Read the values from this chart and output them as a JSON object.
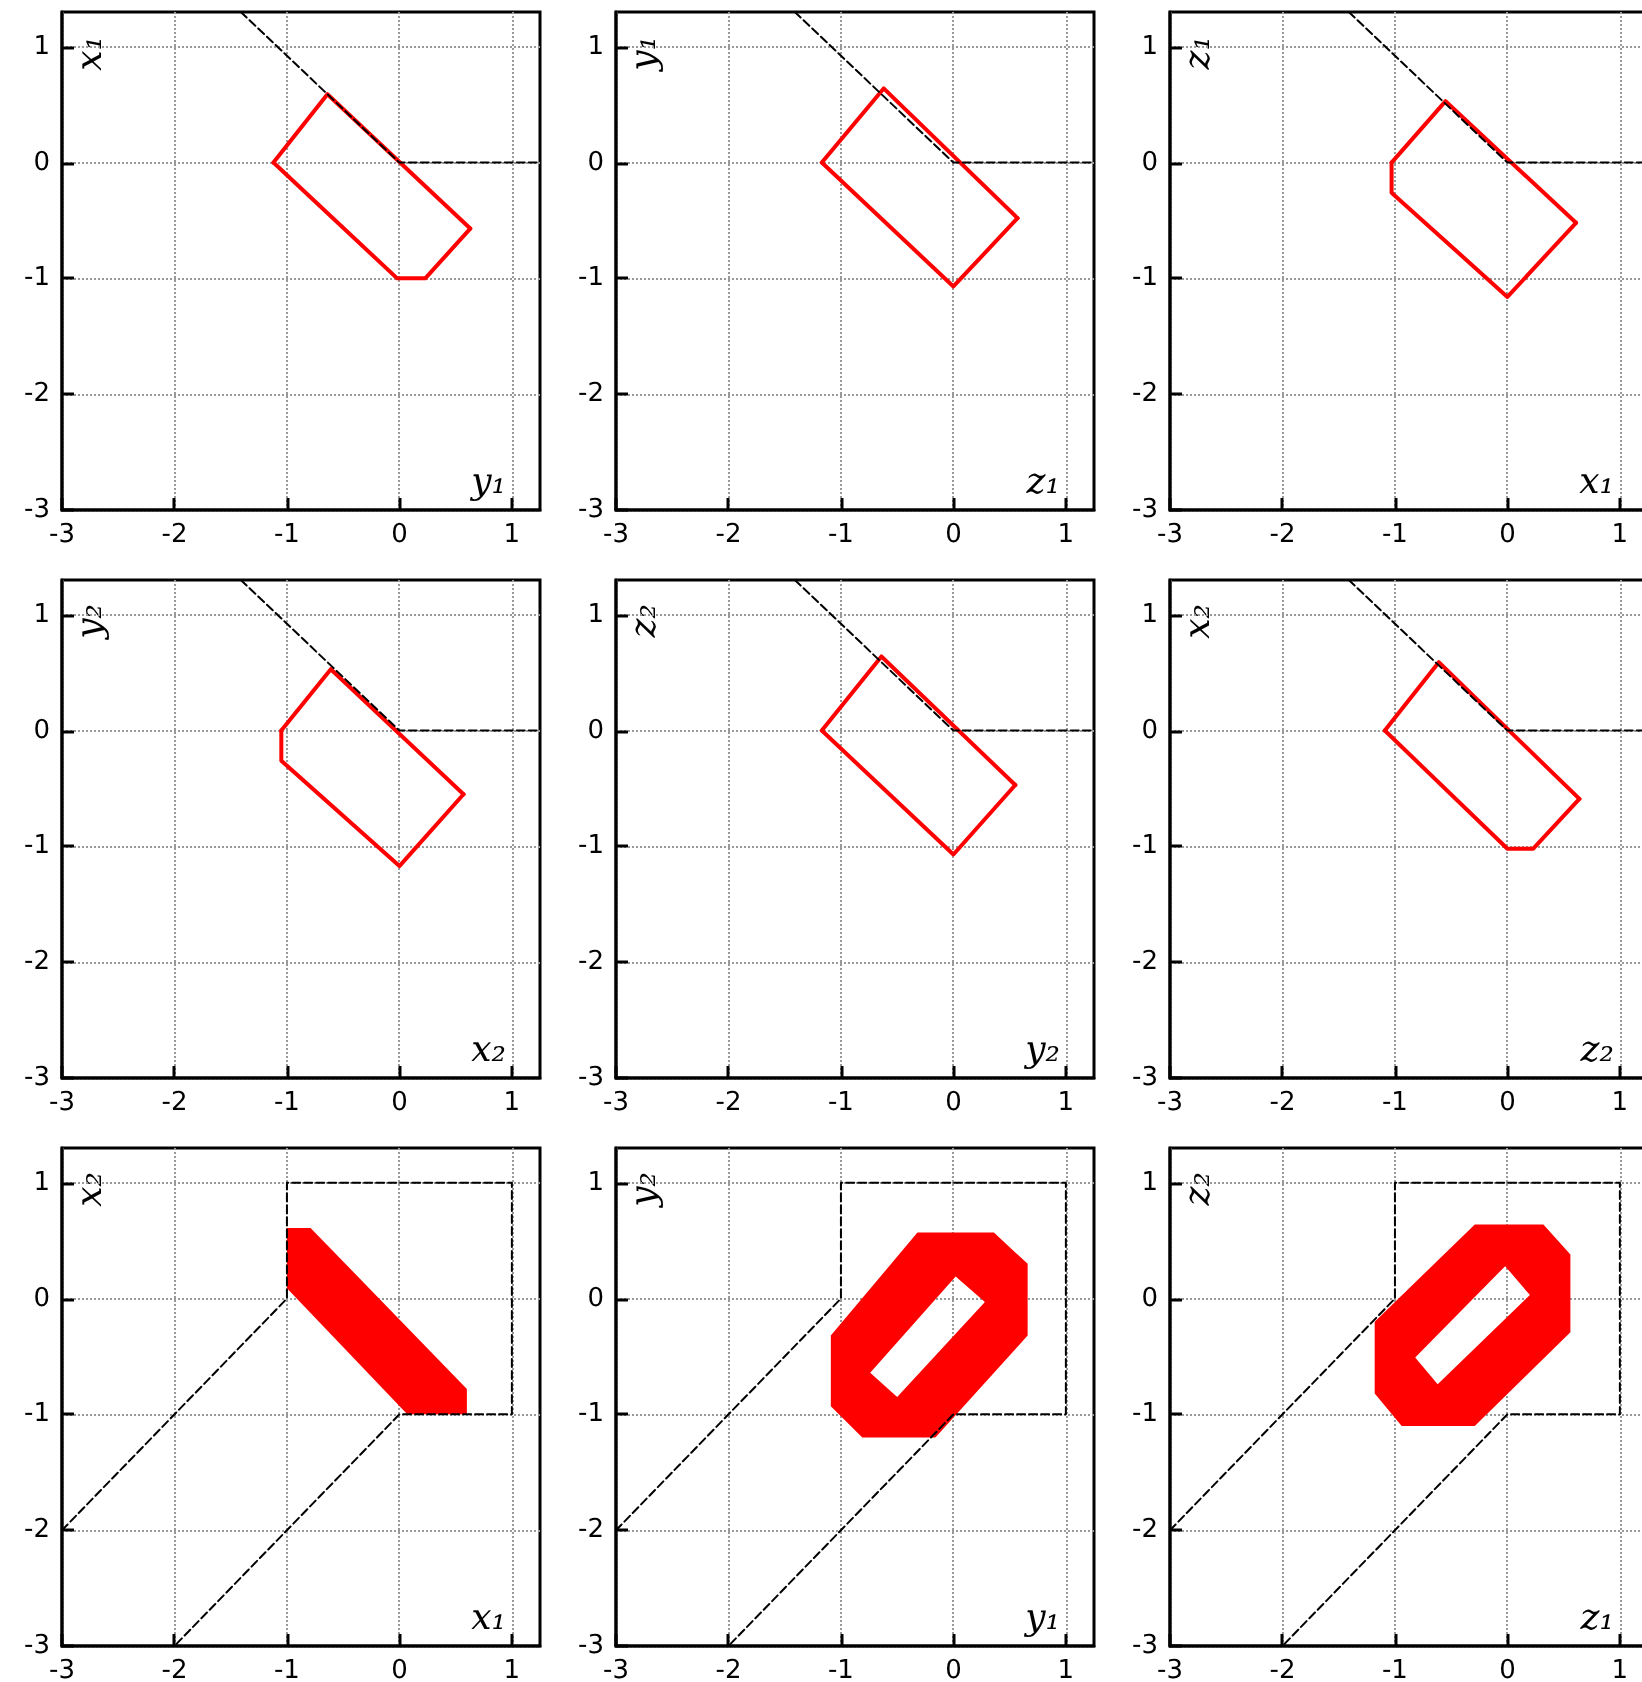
{
  "chart_data": [
    {
      "type": "line",
      "xlabel": "y₁",
      "ylabel": "x₁",
      "xlim": [
        -3,
        1.25
      ],
      "ylim": [
        -3,
        1.3
      ],
      "xticks": [
        -3,
        -2,
        -1,
        0,
        1
      ],
      "yticks": [
        -3,
        -2,
        -1,
        0,
        1
      ],
      "grid": true,
      "marker": "none",
      "series": [
        {
          "color": "#ff0000",
          "x": [
            -1.12,
            -0.64,
            0.63
          ],
          "values": [
            0,
            0.59,
            -0.57
          ]
        },
        {
          "color": "#ff0000",
          "x": [
            -1.12,
            -0.02,
            0.23,
            0.63
          ],
          "values": [
            0,
            -1,
            -1,
            -0.57
          ]
        },
        {
          "color": "#000000",
          "line_style": "dashed",
          "x": [
            -1.41,
            0,
            1.25
          ],
          "values": [
            1.3,
            0,
            0
          ]
        }
      ]
    },
    {
      "type": "line",
      "xlabel": "z₁",
      "ylabel": "y₁",
      "xlim": [
        -3,
        1.25
      ],
      "ylim": [
        -3,
        1.3
      ],
      "xticks": [
        -3,
        -2,
        -1,
        0,
        1
      ],
      "yticks": [
        -3,
        -2,
        -1,
        0,
        1
      ],
      "grid": true,
      "marker": "none",
      "series": [
        {
          "color": "#ff0000",
          "x": [
            -1.17,
            -0.62,
            0.57
          ],
          "values": [
            0,
            0.64,
            -0.48
          ]
        },
        {
          "color": "#ff0000",
          "x": [
            -1.17,
            0,
            0.57
          ],
          "values": [
            0,
            -1.07,
            -0.48
          ]
        },
        {
          "color": "#000000",
          "line_style": "dashed",
          "x": [
            -1.41,
            0,
            1.25
          ],
          "values": [
            1.3,
            0,
            0
          ]
        }
      ]
    },
    {
      "type": "line",
      "xlabel": "x₁",
      "ylabel": "z₁",
      "xlim": [
        -3,
        1.25
      ],
      "ylim": [
        -3,
        1.3
      ],
      "xticks": [
        -3,
        -2,
        -1,
        0,
        1
      ],
      "yticks": [
        -3,
        -2,
        -1,
        0,
        1
      ],
      "grid": true,
      "marker": "none",
      "series": [
        {
          "color": "#ff0000",
          "x": [
            -1.03,
            -0.55,
            0.61
          ],
          "values": [
            0,
            0.53,
            -0.52
          ]
        },
        {
          "color": "#ff0000",
          "x": [
            -1.03,
            -1.03,
            0,
            0.61
          ],
          "values": [
            0,
            -0.26,
            -1.16,
            -0.52
          ]
        },
        {
          "color": "#000000",
          "line_style": "dashed",
          "x": [
            -1.41,
            0,
            1.25
          ],
          "values": [
            1.3,
            0,
            0
          ]
        }
      ]
    },
    {
      "type": "line",
      "xlabel": "x₂",
      "ylabel": "y₂",
      "xlim": [
        -3,
        1.25
      ],
      "ylim": [
        -3,
        1.3
      ],
      "xticks": [
        -3,
        -2,
        -1,
        0,
        1
      ],
      "yticks": [
        -3,
        -2,
        -1,
        0,
        1
      ],
      "grid": true,
      "marker": "none",
      "series": [
        {
          "color": "#ff0000",
          "x": [
            -1.05,
            -0.61,
            0.57
          ],
          "values": [
            0,
            0.53,
            -0.55
          ]
        },
        {
          "color": "#ff0000",
          "x": [
            -1.05,
            -1.05,
            0,
            0.57
          ],
          "values": [
            0,
            -0.26,
            -1.17,
            -0.55
          ]
        },
        {
          "color": "#000000",
          "line_style": "dashed",
          "x": [
            -1.41,
            0,
            1.25
          ],
          "values": [
            1.3,
            0,
            0
          ]
        }
      ]
    },
    {
      "type": "line",
      "xlabel": "y₂",
      "ylabel": "z₂",
      "xlim": [
        -3,
        1.25
      ],
      "ylim": [
        -3,
        1.3
      ],
      "xticks": [
        -3,
        -2,
        -1,
        0,
        1
      ],
      "yticks": [
        -3,
        -2,
        -1,
        0,
        1
      ],
      "grid": true,
      "marker": "none",
      "series": [
        {
          "color": "#ff0000",
          "x": [
            -1.17,
            -0.64,
            0.55
          ],
          "values": [
            0,
            0.64,
            -0.47
          ]
        },
        {
          "color": "#ff0000",
          "x": [
            -1.17,
            0,
            0.55
          ],
          "values": [
            0,
            -1.07,
            -0.47
          ]
        },
        {
          "color": "#000000",
          "line_style": "dashed",
          "x": [
            -1.41,
            0,
            1.25
          ],
          "values": [
            1.3,
            0,
            0
          ]
        }
      ]
    },
    {
      "type": "line",
      "xlabel": "z₂",
      "ylabel": "x₂",
      "xlim": [
        -3,
        1.25
      ],
      "ylim": [
        -3,
        1.3
      ],
      "xticks": [
        -3,
        -2,
        -1,
        0,
        1
      ],
      "yticks": [
        -3,
        -2,
        -1,
        0,
        1
      ],
      "grid": true,
      "marker": "none",
      "series": [
        {
          "color": "#ff0000",
          "x": [
            -1.09,
            -0.61,
            0.64
          ],
          "values": [
            0,
            0.59,
            -0.59
          ]
        },
        {
          "color": "#ff0000",
          "x": [
            -1.09,
            0,
            0.23,
            0.64
          ],
          "values": [
            0,
            -1.02,
            -1.02,
            -0.59
          ]
        },
        {
          "color": "#000000",
          "line_style": "dashed",
          "x": [
            -1.41,
            0,
            1.25
          ],
          "values": [
            1.3,
            0,
            0
          ]
        }
      ]
    },
    {
      "type": "line",
      "xlabel": "x₁",
      "ylabel": "x₂",
      "xlim": [
        -3,
        1.25
      ],
      "ylim": [
        -3,
        1.3
      ],
      "xticks": [
        -3,
        -2,
        -1,
        0,
        1
      ],
      "yticks": [
        -3,
        -2,
        -1,
        0,
        1
      ],
      "grid": true,
      "marker": "none",
      "series": [
        {
          "type": "area",
          "color": "#ff0000",
          "x": [
            -1,
            -0.79,
            0.6,
            0.6,
            0.07,
            -1,
            -1
          ],
          "values": [
            0.61,
            0.61,
            -0.78,
            -1,
            -1,
            0.09,
            0.61
          ]
        },
        {
          "color": "#000000",
          "line_style": "dashed",
          "x": [
            -3,
            -1,
            -1,
            1,
            1,
            0,
            -2
          ],
          "values": [
            -2,
            0,
            1,
            1,
            -1,
            -1,
            -3
          ]
        }
      ]
    },
    {
      "type": "line",
      "xlabel": "y₁",
      "ylabel": "y₂",
      "xlim": [
        -3,
        1.25
      ],
      "ylim": [
        -3,
        1.3
      ],
      "xticks": [
        -3,
        -2,
        -1,
        0,
        1
      ],
      "yticks": [
        -3,
        -2,
        -1,
        0,
        1
      ],
      "grid": true,
      "marker": "none",
      "series": [
        {
          "type": "area",
          "color": "#ff0000",
          "x": [
            -0.32,
            0.36,
            0.66,
            0.66,
            -0.16,
            -0.81,
            -1.09,
            -1.09,
            -0.32,
            0.02,
            -0.74,
            -0.5,
            0.28,
            0.02
          ],
          "values": [
            0.57,
            0.57,
            0.3,
            -0.32,
            -1.2,
            -1.2,
            -0.93,
            -0.32,
            0.57,
            0.19,
            -0.64,
            -0.85,
            -0.03,
            0.19
          ]
        },
        {
          "color": "#000000",
          "line_style": "dashed",
          "x": [
            -3,
            -1,
            -1,
            1,
            1,
            0,
            -2
          ],
          "values": [
            -2,
            0,
            1,
            1,
            -1,
            -1,
            -3
          ]
        }
      ]
    },
    {
      "type": "line",
      "xlabel": "z₁",
      "ylabel": "z₂",
      "xlim": [
        -3,
        1.25
      ],
      "ylim": [
        -3,
        1.3
      ],
      "xticks": [
        -3,
        -2,
        -1,
        0,
        1
      ],
      "yticks": [
        -3,
        -2,
        -1,
        0,
        1
      ],
      "grid": true,
      "marker": "none",
      "series": [
        {
          "type": "area",
          "color": "#ff0000",
          "x": [
            -0.29,
            0.32,
            0.56,
            0.56,
            -0.29,
            -0.94,
            -1.18,
            -1.18,
            -0.29,
            -0.02,
            -0.82,
            -0.62,
            0.2,
            -0.02
          ],
          "values": [
            0.64,
            0.64,
            0.38,
            -0.29,
            -1.1,
            -1.1,
            -0.82,
            -0.2,
            0.64,
            0.28,
            -0.51,
            -0.74,
            0.03,
            0.28
          ]
        },
        {
          "color": "#000000",
          "line_style": "dashed",
          "x": [
            -3,
            -1,
            -1,
            1,
            1,
            0,
            -2
          ],
          "values": [
            -2,
            0,
            1,
            1,
            -1,
            -1,
            -3
          ]
        }
      ]
    }
  ]
}
